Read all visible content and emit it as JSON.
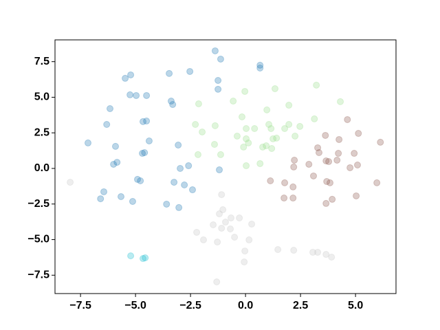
{
  "chart_data": {
    "type": "scatter",
    "xlim": [
      -8.66,
      6.84
    ],
    "ylim": [
      -8.79,
      9.03
    ],
    "xticks": [
      {
        "value": -7.5,
        "label": "−7.5"
      },
      {
        "value": -5.0,
        "label": "−5.0"
      },
      {
        "value": -2.5,
        "label": "−2.5"
      },
      {
        "value": 0,
        "label": "0.0"
      },
      2.5,
      {
        "value": 5.0,
        "label": "5.0"
      }
    ],
    "yticks": [
      {
        "value": -7.5,
        "label": "−7.5"
      },
      {
        "value": -5.0,
        "label": "−5.0"
      },
      {
        "value": -2.5,
        "label": "−2.5"
      },
      {
        "value": 0,
        "label": "0.0"
      },
      2.5,
      {
        "value": 5.0,
        "label": "5.0"
      },
      7.5
    ],
    "alpha": 0.3,
    "series": [
      {
        "color": "#1f77b4",
        "x": [
          -1.38,
          -1.13,
          0.66,
          0.66,
          -3.47,
          -2.53,
          -5.22,
          -5.47,
          -1.25,
          -1.25,
          -5.25,
          -4.97,
          -4.5,
          -3.38,
          -3.31,
          -6.16,
          -6.31,
          -4.5,
          -4.66,
          -7.16,
          -5.91,
          -4.38,
          -3.06,
          -4.59,
          -4.69,
          -6.0,
          -5.84,
          -2.59,
          -1.19,
          -2.97,
          -4.91,
          -4.78,
          -3.25,
          -2.78,
          -2.41,
          -6.44,
          -6.59,
          -5.66,
          -5.13,
          -3.59,
          -3.03
        ],
        "values": [
          8.26,
          7.68,
          7.25,
          7.05,
          6.67,
          6.81,
          6.57,
          6.33,
          6.18,
          5.56,
          5.17,
          5.12,
          5.12,
          4.73,
          4.49,
          4.2,
          3.09,
          3.33,
          3.29,
          1.79,
          1.55,
          1.93,
          1.64,
          1.11,
          1.06,
          0.29,
          0.43,
          0.19,
          -0.1,
          0.0,
          -0.77,
          -0.87,
          -0.97,
          -1.16,
          -1.5,
          -1.64,
          -2.13,
          -1.98,
          -2.32,
          -2.51,
          -2.75
        ]
      },
      {
        "color": "#98df8a",
        "x": [
          -0.03,
          -0.56,
          -2.13,
          1.34,
          3.22,
          1.97,
          4.31,
          -2.28,
          -1.97,
          -1.38,
          -0.16,
          0.03,
          0.41,
          0.97,
          1.06,
          1.16,
          1.78,
          3.13,
          2.47,
          1.97,
          -0.38,
          0.03,
          0.13,
          1.25,
          1.41,
          2.25,
          -1.41,
          -0.09,
          0.78,
          0.94,
          1.19,
          -2.16,
          -1.13,
          0.66,
          0.03
        ],
        "values": [
          5.41,
          4.73,
          4.54,
          5.6,
          5.85,
          4.44,
          4.69,
          3.09,
          2.56,
          3.0,
          3.62,
          2.8,
          2.8,
          4.11,
          3.09,
          2.8,
          2.8,
          3.48,
          2.95,
          3.09,
          2.27,
          2.08,
          1.79,
          2.08,
          2.13,
          2.27,
          1.69,
          1.5,
          1.5,
          1.59,
          1.4,
          0.97,
          0.97,
          0.34,
          0.19
        ]
      },
      {
        "color": "#8c564b",
        "x": [
          4.63,
          3.63,
          5.13,
          6.13,
          3.28,
          4.25,
          3.34,
          2.88,
          3.66,
          4.94,
          3.78,
          4.22,
          4.16,
          2.22,
          2.19,
          3.09,
          3.69,
          3.84,
          4.75,
          5.09,
          5.97,
          1.13,
          1.78,
          2.16,
          1.75,
          2.16,
          3.66,
          3.94,
          5.03
        ],
        "values": [
          3.43,
          2.32,
          2.46,
          1.84,
          1.45,
          2.03,
          1.11,
          0.29,
          0.53,
          1.06,
          0.48,
          1.06,
          0.58,
          0.58,
          0.1,
          -0.53,
          -0.92,
          -1.01,
          0.05,
          0.24,
          -1.01,
          -0.87,
          -1.01,
          -1.3,
          -2.08,
          -2.08,
          -2.46,
          -2.17,
          -1.93
        ]
      },
      {
        "color": "#c7c7c7",
        "x": [
          -7.97,
          -1.09,
          -1.03,
          -1.19,
          -1.47,
          -0.91,
          -0.66,
          -0.28,
          -0.69,
          -1.09,
          0.28,
          -2.22,
          -1.91,
          -1.28,
          -0.5,
          0.16,
          1.47,
          2.19,
          -0.03,
          3.06,
          3.28,
          3.66,
          3.91,
          -0.06,
          -1.31
        ],
        "values": [
          -0.97,
          -1.84,
          -2.9,
          -3.19,
          -3.96,
          -3.77,
          -3.48,
          -3.48,
          -4.25,
          -4.2,
          -3.91,
          -4.49,
          -5.02,
          -5.17,
          -4.83,
          -5.02,
          -5.7,
          -5.75,
          -5.8,
          -5.89,
          -5.89,
          -6.04,
          -6.23,
          -6.57,
          -7.97
        ]
      },
      {
        "color": "#17becf",
        "x": [
          -5.22,
          -4.66,
          -4.56
        ],
        "values": [
          -6.14,
          -6.33,
          -6.28
        ]
      }
    ]
  }
}
